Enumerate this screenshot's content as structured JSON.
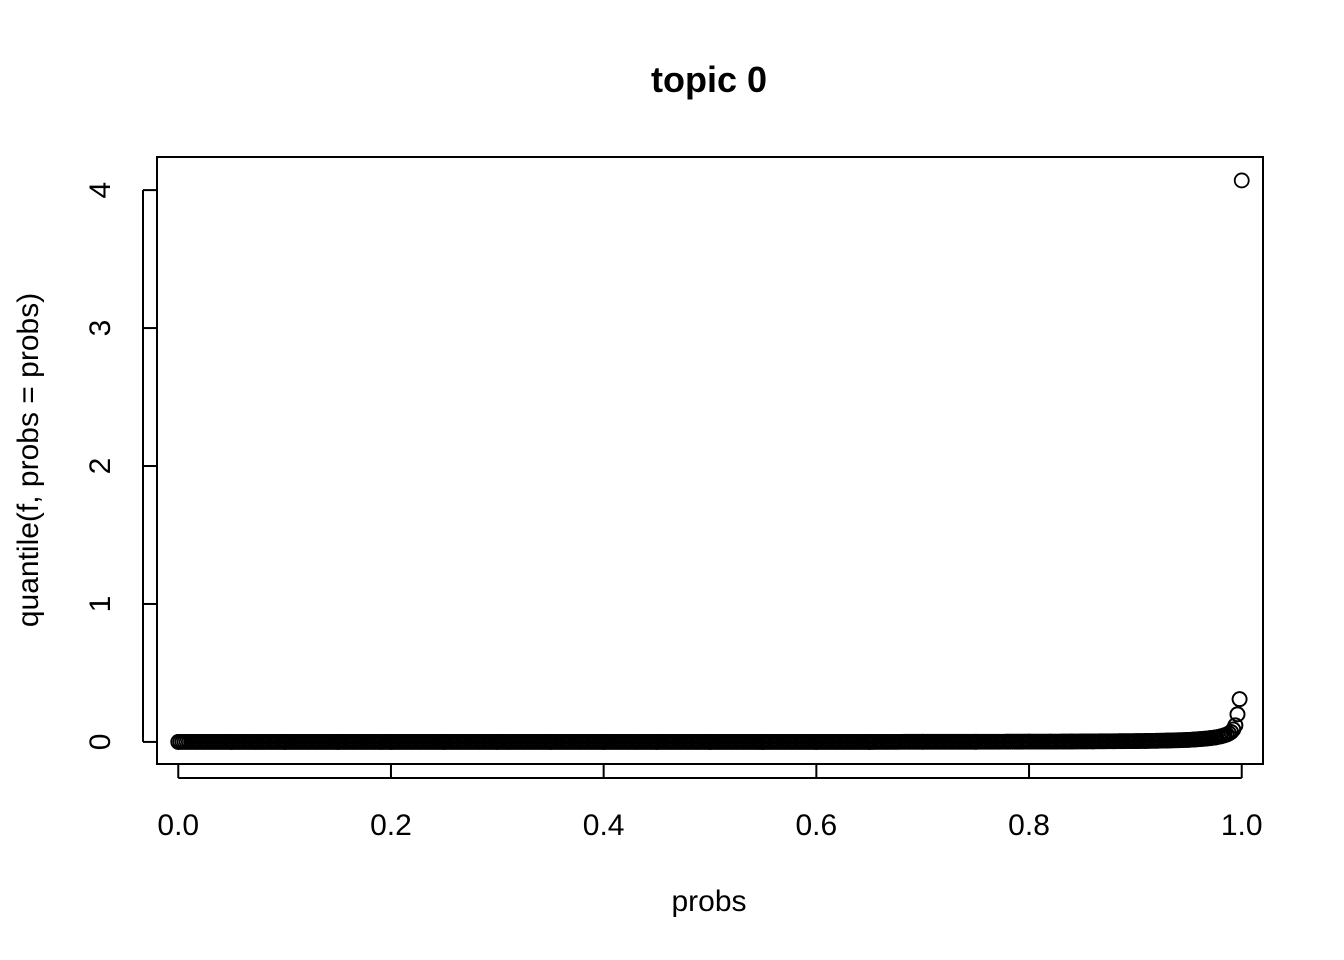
{
  "chart_data": {
    "type": "scatter",
    "title": "topic 0",
    "xlabel": "probs",
    "ylabel": "quantile(f, probs = probs)",
    "xlim": [
      -0.02,
      1.02
    ],
    "ylim": [
      -0.16,
      4.24
    ],
    "x_ticks": [
      0.0,
      0.2,
      0.4,
      0.6,
      0.8,
      1.0
    ],
    "x_tick_labels": [
      "0.0",
      "0.2",
      "0.4",
      "0.6",
      "0.8",
      "1.0"
    ],
    "y_ticks": [
      0,
      1,
      2,
      3,
      4
    ],
    "y_tick_labels": [
      "0",
      "1",
      "2",
      "3",
      "4"
    ],
    "grid": false,
    "legend": "none",
    "series": [
      {
        "x": [
          0.0,
          0.05,
          0.1,
          0.15,
          0.2,
          0.25,
          0.3,
          0.35,
          0.4,
          0.45,
          0.5,
          0.55,
          0.6,
          0.65,
          0.7,
          0.75,
          0.8,
          0.82,
          0.84,
          0.86,
          0.88,
          0.9,
          0.91,
          0.92,
          0.93,
          0.94,
          0.95,
          0.955,
          0.96,
          0.965,
          0.97,
          0.975,
          0.98,
          0.983,
          0.986,
          0.988,
          0.99,
          0.992,
          0.994,
          0.996,
          0.998,
          1.0
        ],
        "y": [
          0.0,
          0.0,
          0.0,
          0.0,
          0.0,
          0.0,
          0.0,
          0.0,
          0.0,
          0.0,
          0.0,
          0.0,
          0.0,
          0.0,
          0.001,
          0.001,
          0.002,
          0.002,
          0.003,
          0.004,
          0.005,
          0.006,
          0.007,
          0.008,
          0.01,
          0.012,
          0.015,
          0.017,
          0.02,
          0.023,
          0.027,
          0.032,
          0.04,
          0.046,
          0.054,
          0.062,
          0.072,
          0.09,
          0.12,
          0.2,
          0.31,
          4.07
        ]
      }
    ]
  }
}
